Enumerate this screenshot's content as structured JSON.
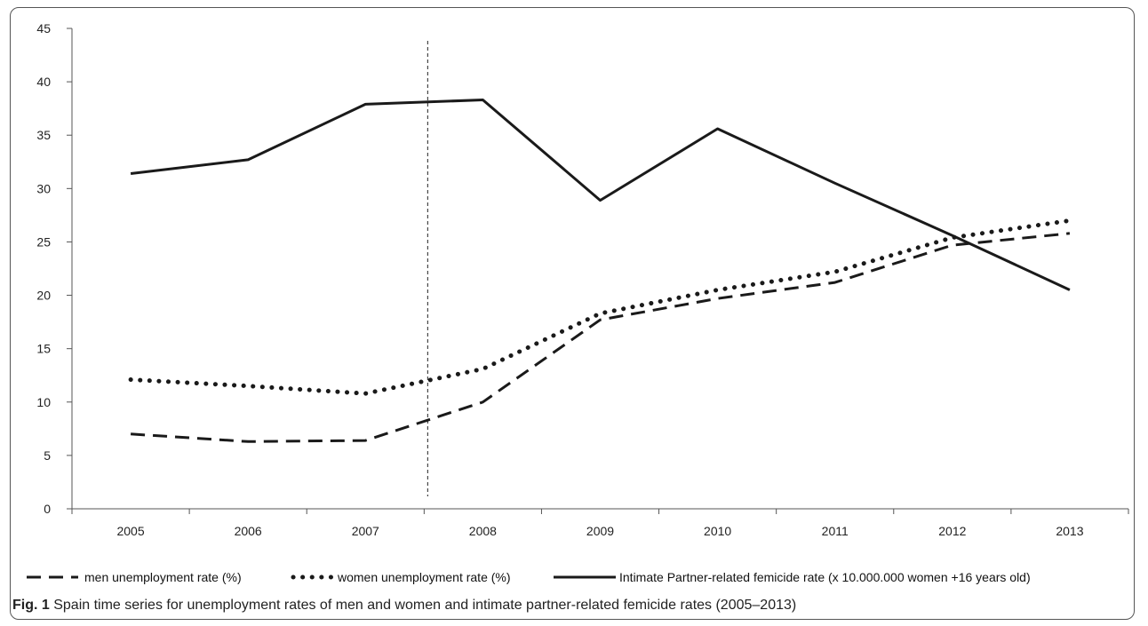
{
  "chart_data": {
    "type": "line",
    "x": [
      "2005",
      "2006",
      "2007",
      "2008",
      "2009",
      "2010",
      "2011",
      "2012",
      "2013"
    ],
    "ylim": [
      0,
      45
    ],
    "yticks": [
      0,
      5,
      10,
      15,
      20,
      25,
      30,
      35,
      40,
      45
    ],
    "ytick_labels": [
      "0",
      "5",
      "10",
      "15",
      "20",
      "25",
      "30",
      "35",
      "40",
      "45"
    ],
    "grid": false,
    "legend_position": "bottom",
    "reference_line": {
      "x_between": [
        "2007",
        "2008"
      ],
      "style": "dashed"
    },
    "series": [
      {
        "name": "men unemployment rate (%)",
        "style": "dashed",
        "color": "#1a1a1a",
        "values": [
          7.0,
          6.3,
          6.4,
          10.0,
          17.7,
          19.7,
          21.2,
          24.7,
          25.8
        ]
      },
      {
        "name": "women unemployment rate (%)",
        "style": "dotted",
        "color": "#1a1a1a",
        "values": [
          12.1,
          11.5,
          10.8,
          13.1,
          18.3,
          20.5,
          22.2,
          25.4,
          27.0
        ]
      },
      {
        "name": "Intimate Partner-related femicide rate (x 10.000.000 women +16 years old)",
        "style": "solid",
        "color": "#1a1a1a",
        "values": [
          31.4,
          32.7,
          37.9,
          38.3,
          28.9,
          35.6,
          30.5,
          25.6,
          20.5
        ]
      }
    ]
  },
  "caption": {
    "label": "Fig. 1",
    "text": " Spain time series for unemployment rates of men and women and intimate partner-related femicide rates (2005–2013)"
  }
}
